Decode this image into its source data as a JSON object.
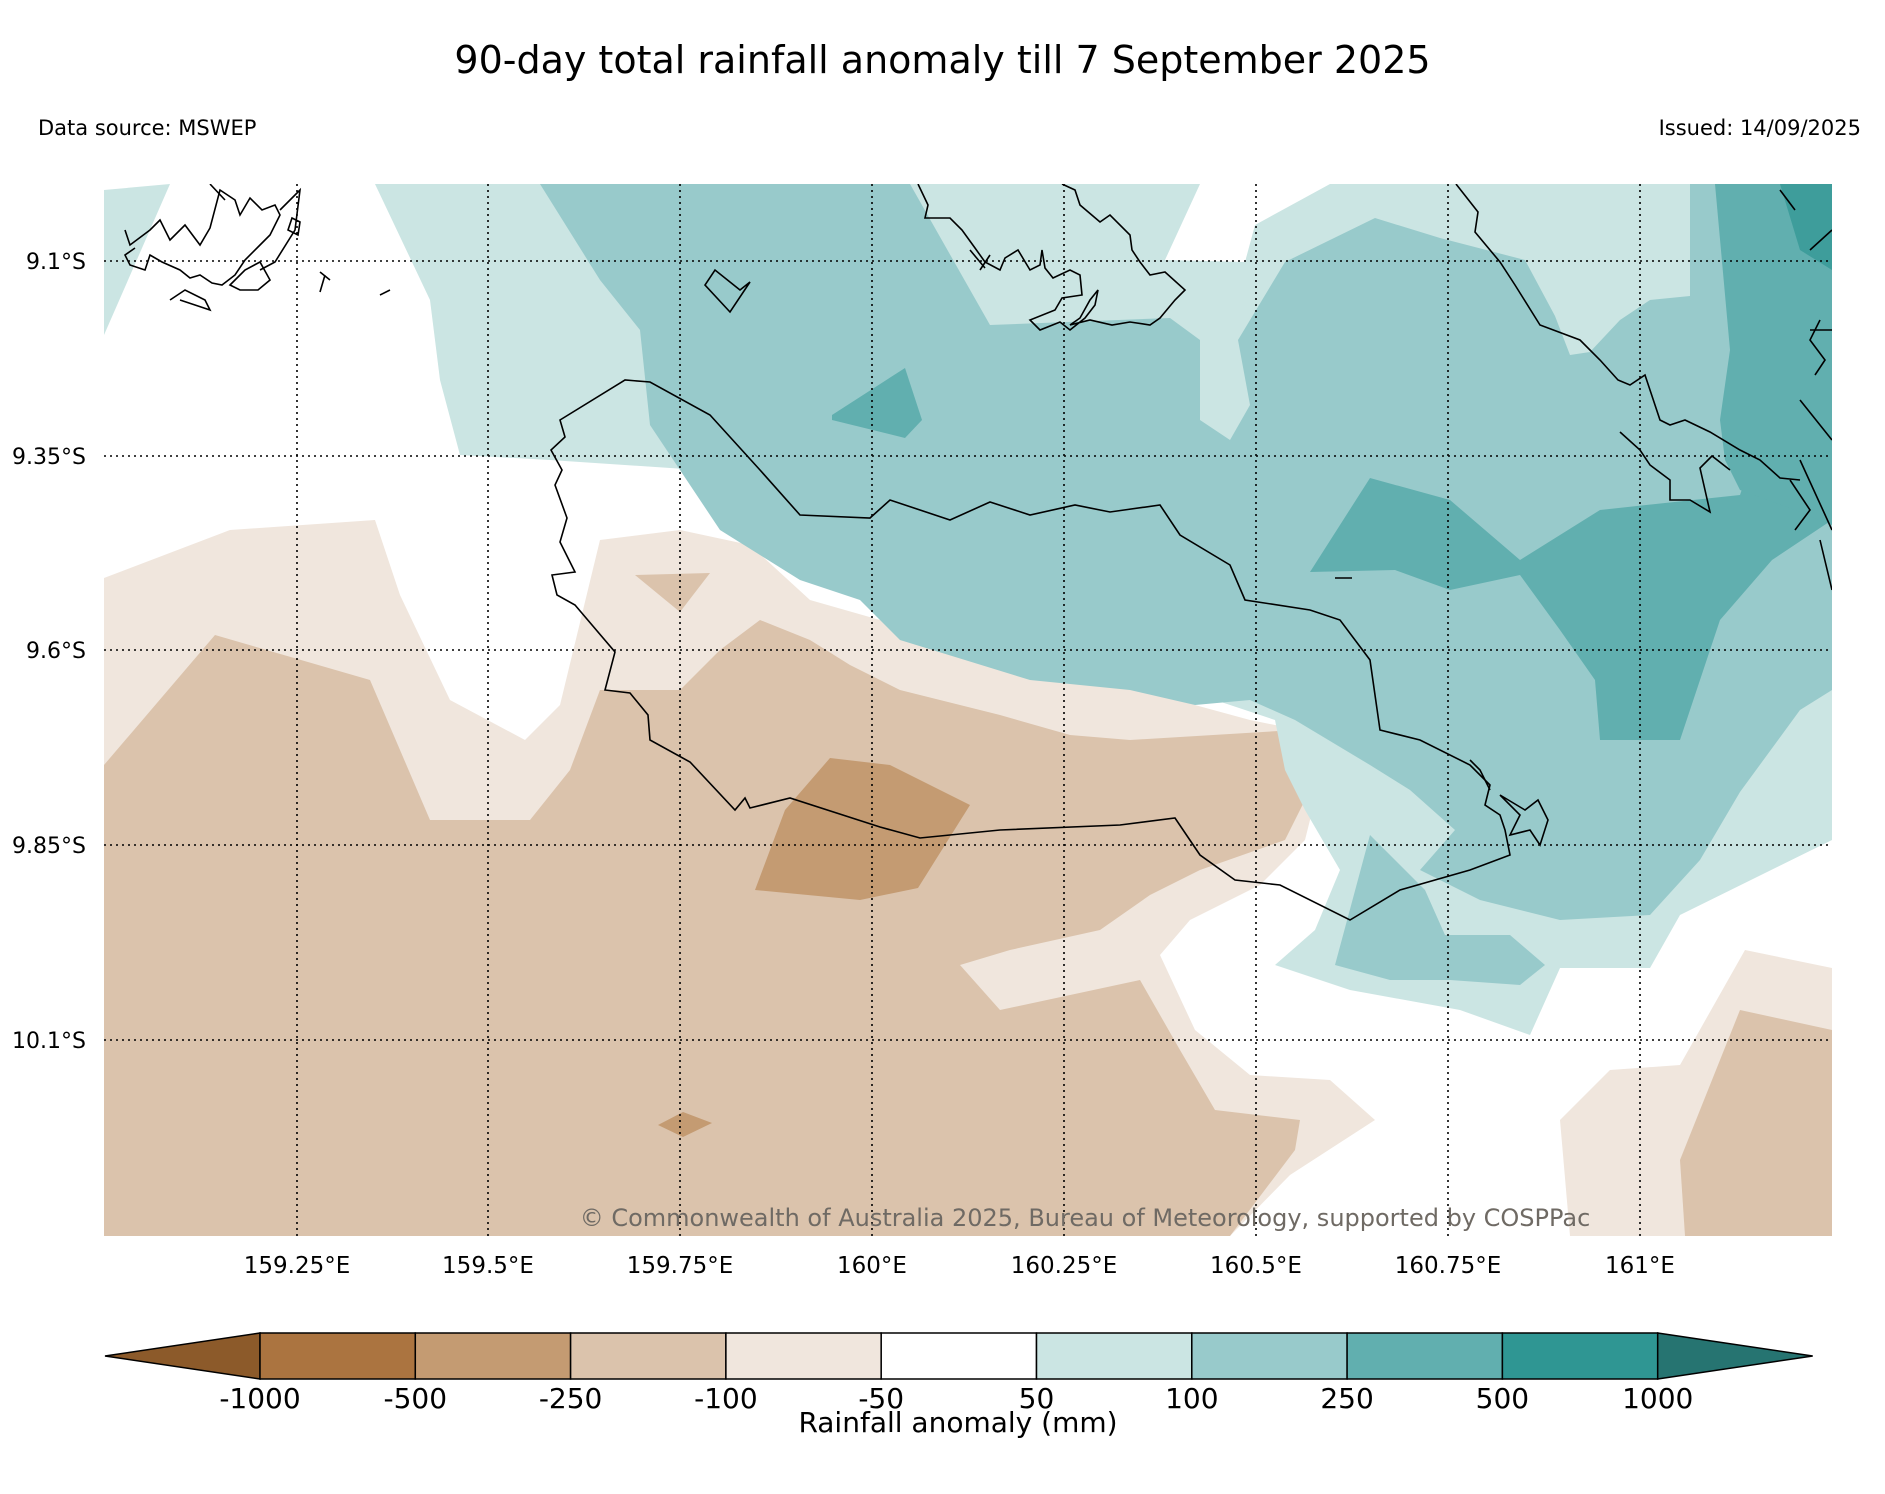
{
  "title": "90-day total rainfall anomaly till 7 September 2025",
  "source": "Data source: MSWEP",
  "issued": "Issued: 14/09/2025",
  "copyright": "© Commonwealth of Australia 2025, Bureau of Meteorology, supported by COSPPac",
  "lat_labels": [
    "9.1°S",
    "9.35°S",
    "9.6°S",
    "9.85°S",
    "10.1°S"
  ],
  "lon_labels": [
    "159.25°E",
    "159.5°E",
    "159.75°E",
    "160°E",
    "160.25°E",
    "160.5°E",
    "160.75°E",
    "161°E"
  ],
  "colorbar": {
    "label": "Rainfall anomaly (mm)",
    "ticks": [
      "-1000",
      "-500",
      "-250",
      "-100",
      "-50",
      "50",
      "100",
      "250",
      "500",
      "1000"
    ],
    "colors": [
      "#8c5a2a",
      "#ab7440",
      "#c49b72",
      "#dbc3ac",
      "#f0e6dd",
      "#ffffff",
      "#cbe5e3",
      "#98cacb",
      "#61afaf",
      "#2f9693",
      "#267471"
    ]
  }
}
